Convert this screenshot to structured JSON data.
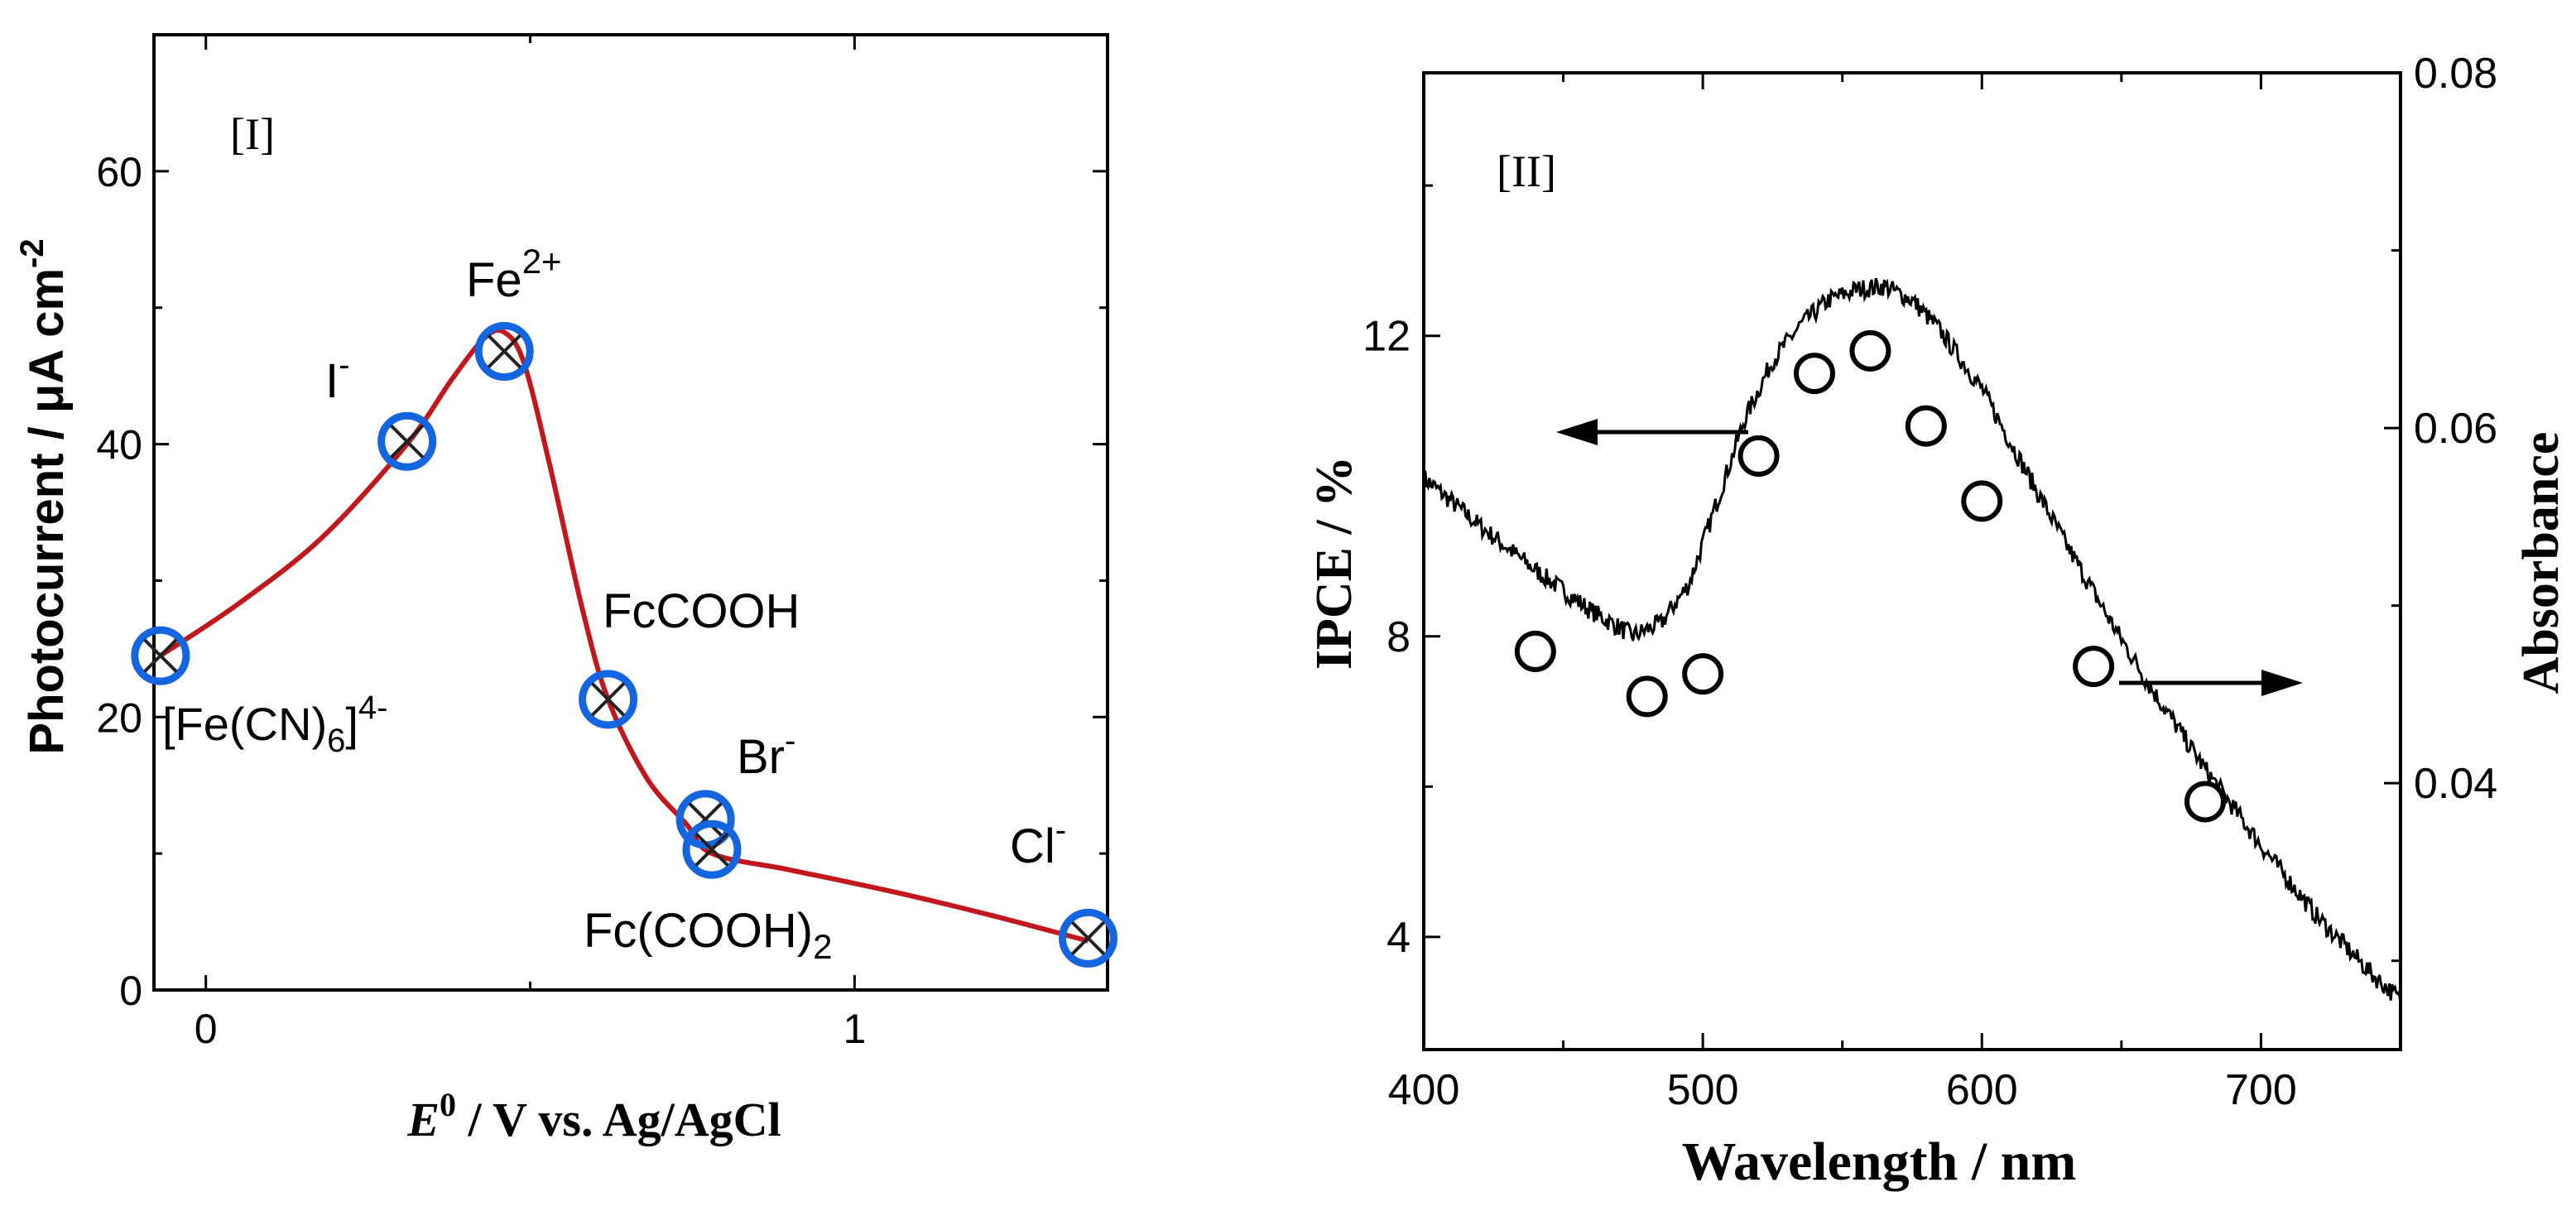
{
  "chart_data": [
    {
      "type": "scatter",
      "panel_label": "[I]",
      "xlabel_italic": "E",
      "xlabel_sup": "0",
      "xlabel_rest": " / V vs. Ag/AgCl",
      "ylabel": "Photocurrent / μA cm",
      "ylabel_sup": "-2",
      "xlim": [
        -0.08,
        1.39
      ],
      "ylim": [
        0,
        70
      ],
      "xticks": [
        0,
        1
      ],
      "xtick_labels": [
        "0",
        "1"
      ],
      "yticks": [
        0,
        20,
        40,
        60
      ],
      "ytick_labels": [
        "0",
        "20",
        "40",
        "60"
      ],
      "points": [
        {
          "name": "[Fe(CN)6]4-",
          "x": -0.07,
          "y": 24.5
        },
        {
          "name": "I-",
          "x": 0.31,
          "y": 40.2
        },
        {
          "name": "Fe2+",
          "x": 0.46,
          "y": 46.8
        },
        {
          "name": "FcCOOH",
          "x": 0.62,
          "y": 21.3
        },
        {
          "name": "Br-",
          "x": 0.77,
          "y": 12.5
        },
        {
          "name": "Fc(COOH)2",
          "x": 0.78,
          "y": 10.3
        },
        {
          "name": "Cl-",
          "x": 1.36,
          "y": 3.8
        }
      ],
      "fit_curve": {
        "color": "#c0181c",
        "x": [
          -0.07,
          0.05,
          0.18,
          0.31,
          0.38,
          0.43,
          0.46,
          0.49,
          0.53,
          0.58,
          0.62,
          0.68,
          0.74,
          0.78,
          0.9,
          1.05,
          1.2,
          1.36
        ],
        "y": [
          24.5,
          28.3,
          33.2,
          40.0,
          44.8,
          47.8,
          48.2,
          46.0,
          38.5,
          28.0,
          21.3,
          15.5,
          12.2,
          10.0,
          8.8,
          7.3,
          5.6,
          3.6
        ]
      },
      "marker_color": "#1565e0",
      "labels": {
        "fecn_main": "[Fe(CN)",
        "fecn_sub": "6",
        "fecn_close": "]",
        "fecn_sup": "4-",
        "i_main": "I",
        "i_sup": "-",
        "fe_main": "Fe",
        "fe_sup": "2+",
        "fccooh": "FcCOOH",
        "br_main": "Br",
        "br_sup": "-",
        "fccooh2_main": "Fc(COOH)",
        "fccooh2_sub": "2",
        "cl_main": "Cl",
        "cl_sup": "-"
      }
    },
    {
      "type": "line",
      "panel_label": "[II]",
      "xlabel": "Wavelength / nm",
      "ylabel_left": "IPCE / %",
      "ylabel_right": "Absorbance",
      "xlim": [
        400,
        750
      ],
      "ylim_left": [
        2.5,
        15.5
      ],
      "ylim_right": [
        0.025,
        0.08
      ],
      "xticks": [
        400,
        500,
        600,
        700
      ],
      "xtick_labels": [
        "400",
        "500",
        "600",
        "700"
      ],
      "yticks_left": [
        4,
        8,
        12
      ],
      "ytick_labels_left": [
        "4",
        "8",
        "12"
      ],
      "yticks_right": [
        0.04,
        0.06,
        0.08
      ],
      "ytick_labels_right": [
        "0.04",
        "0.06",
        "0.08"
      ],
      "series": [
        {
          "name": "IPCE",
          "axis": "left",
          "marker": "open-circle",
          "x": [
            440,
            480,
            500,
            520,
            540,
            560,
            580,
            600,
            640,
            680
          ],
          "y": [
            7.8,
            7.2,
            7.5,
            10.4,
            11.5,
            11.8,
            10.8,
            9.8,
            7.6,
            5.8
          ]
        },
        {
          "name": "Absorbance",
          "axis": "right",
          "x": [
            400,
            420,
            440,
            460,
            475,
            485,
            495,
            505,
            515,
            525,
            535,
            545,
            555,
            565,
            575,
            585,
            600,
            615,
            630,
            645,
            660,
            680,
            700,
            720,
            740,
            750
          ],
          "y": [
            0.0572,
            0.0545,
            0.052,
            0.0497,
            0.0483,
            0.049,
            0.0512,
            0.0558,
            0.0605,
            0.0638,
            0.0658,
            0.0672,
            0.0678,
            0.068,
            0.0672,
            0.0655,
            0.0622,
            0.0578,
            0.0535,
            0.0494,
            0.0455,
            0.0408,
            0.0365,
            0.0325,
            0.0292,
            0.0278
          ]
        }
      ],
      "arrows": [
        "left arrow pointing to IPCE axis",
        "right arrow pointing to Absorbance axis"
      ]
    }
  ]
}
